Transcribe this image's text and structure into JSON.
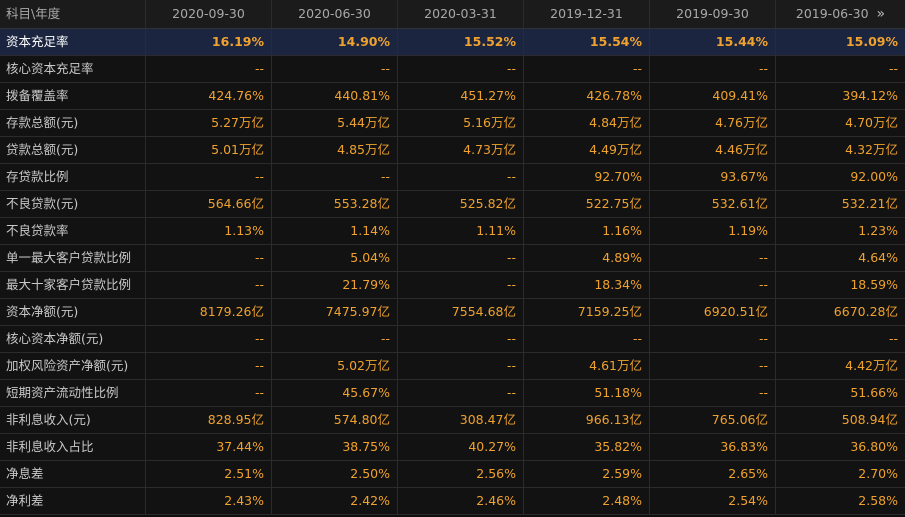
{
  "table": {
    "header": [
      "科目\\年度",
      "2020-09-30",
      "2020-06-30",
      "2020-03-31",
      "2019-12-31",
      "2019-09-30",
      "2019-06-30"
    ],
    "rows": [
      [
        "资本充足率",
        "16.19%",
        "14.90%",
        "15.52%",
        "15.54%",
        "15.44%",
        "15.09%"
      ],
      [
        "核心资本充足率",
        "--",
        "--",
        "--",
        "--",
        "--",
        "--"
      ],
      [
        "拨备覆盖率",
        "424.76%",
        "440.81%",
        "451.27%",
        "426.78%",
        "409.41%",
        "394.12%"
      ],
      [
        "存款总额(元)",
        "5.27万亿",
        "5.44万亿",
        "5.16万亿",
        "4.84万亿",
        "4.76万亿",
        "4.70万亿"
      ],
      [
        "贷款总额(元)",
        "5.01万亿",
        "4.85万亿",
        "4.73万亿",
        "4.49万亿",
        "4.46万亿",
        "4.32万亿"
      ],
      [
        "存贷款比例",
        "--",
        "--",
        "--",
        "92.70%",
        "93.67%",
        "92.00%"
      ],
      [
        "不良贷款(元)",
        "564.66亿",
        "553.28亿",
        "525.82亿",
        "522.75亿",
        "532.61亿",
        "532.21亿"
      ],
      [
        "不良贷款率",
        "1.13%",
        "1.14%",
        "1.11%",
        "1.16%",
        "1.19%",
        "1.23%"
      ],
      [
        "单一最大客户贷款比例",
        "--",
        "5.04%",
        "--",
        "4.89%",
        "--",
        "4.64%"
      ],
      [
        "最大十家客户贷款比例",
        "--",
        "21.79%",
        "--",
        "18.34%",
        "--",
        "18.59%"
      ],
      [
        "资本净额(元)",
        "8179.26亿",
        "7475.97亿",
        "7554.68亿",
        "7159.25亿",
        "6920.51亿",
        "6670.28亿"
      ],
      [
        "核心资本净额(元)",
        "--",
        "--",
        "--",
        "--",
        "--",
        "--"
      ],
      [
        "加权风险资产净额(元)",
        "--",
        "5.02万亿",
        "--",
        "4.61万亿",
        "--",
        "4.42万亿"
      ],
      [
        "短期资产流动性比例",
        "--",
        "45.67%",
        "--",
        "51.18%",
        "--",
        "51.66%"
      ],
      [
        "非利息收入(元)",
        "828.95亿",
        "574.80亿",
        "308.47亿",
        "966.13亿",
        "765.06亿",
        "508.94亿"
      ],
      [
        "非利息收入占比",
        "37.44%",
        "38.75%",
        "40.27%",
        "35.82%",
        "36.83%",
        "36.80%"
      ],
      [
        "净息差",
        "2.51%",
        "2.50%",
        "2.56%",
        "2.59%",
        "2.65%",
        "2.70%"
      ],
      [
        "净利差",
        "2.43%",
        "2.42%",
        "2.46%",
        "2.48%",
        "2.54%",
        "2.58%"
      ]
    ]
  }
}
